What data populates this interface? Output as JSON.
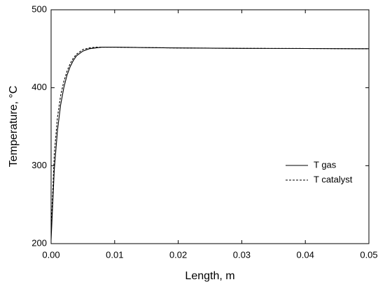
{
  "chart_data": {
    "type": "line",
    "x_label": "Length, m",
    "y_label": "Temperature, °C",
    "x": [
      0,
      0.0005,
      0.001,
      0.0015,
      0.002,
      0.0025,
      0.003,
      0.0035,
      0.004,
      0.005,
      0.006,
      0.007,
      0.008,
      0.01,
      0.015,
      0.02,
      0.03,
      0.04,
      0.05
    ],
    "series": [
      {
        "name": "T gas",
        "color": "#000000",
        "style": "solid",
        "values": [
          205,
          295,
          345,
          378,
          400,
          416,
          427,
          435,
          441,
          447,
          450,
          451,
          452,
          452,
          451.5,
          451,
          450.5,
          450.3,
          450
        ]
      },
      {
        "name": "T catalyst",
        "color": "#000000",
        "style": "dashed",
        "values": [
          215,
          315,
          362,
          390,
          408,
          421,
          431,
          438,
          443,
          449,
          451,
          452,
          452,
          452,
          451.5,
          451,
          450.5,
          450.3,
          450
        ]
      }
    ],
    "xlim": [
      0,
      0.05
    ],
    "ylim": [
      200,
      500
    ],
    "xticks": [
      {
        "value": 0,
        "label": "0.00"
      },
      {
        "value": 0.01,
        "label": "0.01"
      },
      {
        "value": 0.02,
        "label": "0.02"
      },
      {
        "value": 0.03,
        "label": "0.03"
      },
      {
        "value": 0.04,
        "label": "0.04"
      },
      {
        "value": 0.05,
        "label": "0.05"
      }
    ],
    "yticks": [
      200,
      300,
      400,
      500
    ],
    "grid": false,
    "legend": "right"
  }
}
